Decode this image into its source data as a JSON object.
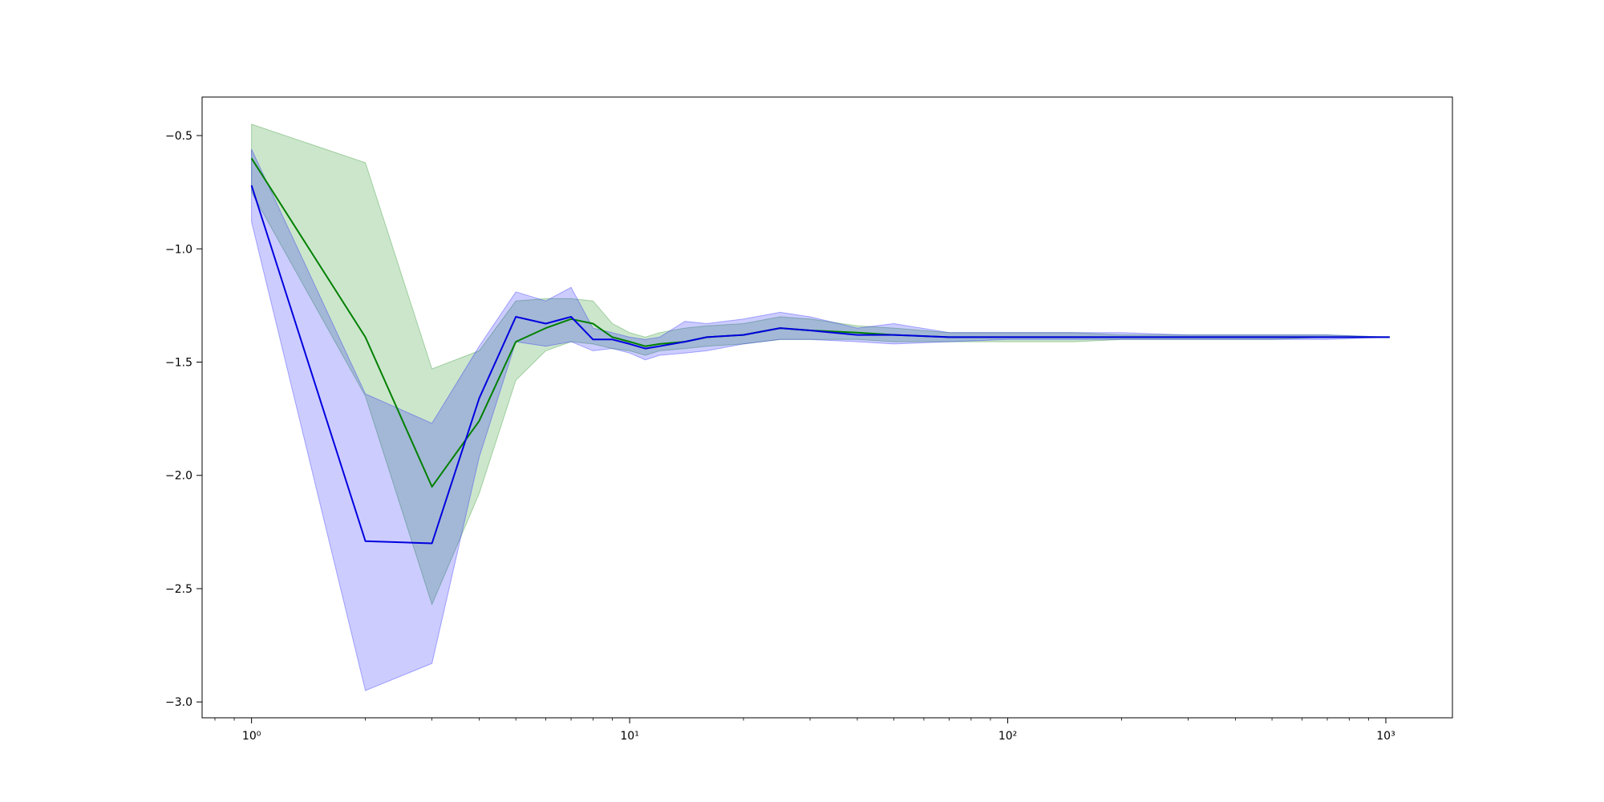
{
  "chart_data": {
    "type": "line",
    "title": "",
    "xlabel": "",
    "ylabel": "",
    "xscale": "log",
    "xlim": [
      0.74,
      1500
    ],
    "ylim": [
      -3.07,
      -0.33
    ],
    "grid": false,
    "legend": "none",
    "x_ticks": [
      {
        "value": 1,
        "label": "10⁰"
      },
      {
        "value": 10,
        "label": "10¹"
      },
      {
        "value": 100,
        "label": "10²"
      },
      {
        "value": 1000,
        "label": "10³"
      }
    ],
    "y_ticks": [
      {
        "value": -0.5,
        "label": "−0.5"
      },
      {
        "value": -1.0,
        "label": "−1.0"
      },
      {
        "value": -1.5,
        "label": "−1.5"
      },
      {
        "value": -2.0,
        "label": "−2.0"
      },
      {
        "value": -2.5,
        "label": "−2.5"
      },
      {
        "value": -3.0,
        "label": "−3.0"
      }
    ],
    "series": [
      {
        "color": "#008000",
        "band_color": "#008000",
        "band_opacity": 0.2,
        "x": [
          1,
          2,
          3,
          4,
          5,
          6,
          7,
          8,
          9,
          10,
          11,
          12,
          14,
          16,
          20,
          25,
          30,
          40,
          50,
          70,
          100,
          150,
          200,
          300,
          500,
          700,
          1024
        ],
        "y": [
          -0.6,
          -1.39,
          -2.05,
          -1.76,
          -1.41,
          -1.35,
          -1.31,
          -1.33,
          -1.39,
          -1.41,
          -1.43,
          -1.42,
          -1.41,
          -1.39,
          -1.38,
          -1.35,
          -1.36,
          -1.37,
          -1.38,
          -1.39,
          -1.39,
          -1.39,
          -1.39,
          -1.39,
          -1.39,
          -1.39,
          -1.39
        ],
        "lower": [
          -0.75,
          -1.65,
          -2.57,
          -2.08,
          -1.58,
          -1.45,
          -1.41,
          -1.42,
          -1.44,
          -1.45,
          -1.47,
          -1.45,
          -1.44,
          -1.43,
          -1.42,
          -1.4,
          -1.4,
          -1.4,
          -1.41,
          -1.41,
          -1.41,
          -1.41,
          -1.4,
          -1.4,
          -1.4,
          -1.39,
          -1.39
        ],
        "upper": [
          -0.45,
          -0.62,
          -1.53,
          -1.45,
          -1.23,
          -1.22,
          -1.22,
          -1.23,
          -1.33,
          -1.37,
          -1.39,
          -1.37,
          -1.35,
          -1.34,
          -1.33,
          -1.3,
          -1.31,
          -1.34,
          -1.35,
          -1.37,
          -1.37,
          -1.37,
          -1.38,
          -1.38,
          -1.38,
          -1.38,
          -1.39
        ]
      },
      {
        "color": "#0000e0",
        "band_color": "#0000ff",
        "band_opacity": 0.2,
        "x": [
          1,
          2,
          3,
          4,
          5,
          6,
          7,
          8,
          9,
          10,
          11,
          12,
          14,
          16,
          20,
          25,
          30,
          40,
          50,
          70,
          100,
          150,
          200,
          300,
          500,
          700,
          1024
        ],
        "y": [
          -0.72,
          -2.29,
          -2.3,
          -1.66,
          -1.3,
          -1.33,
          -1.3,
          -1.4,
          -1.4,
          -1.42,
          -1.44,
          -1.43,
          -1.41,
          -1.39,
          -1.38,
          -1.35,
          -1.36,
          -1.38,
          -1.38,
          -1.39,
          -1.39,
          -1.39,
          -1.39,
          -1.39,
          -1.39,
          -1.39,
          -1.39
        ],
        "lower": [
          -0.88,
          -2.95,
          -2.83,
          -1.92,
          -1.41,
          -1.43,
          -1.41,
          -1.45,
          -1.44,
          -1.46,
          -1.49,
          -1.47,
          -1.46,
          -1.45,
          -1.42,
          -1.4,
          -1.4,
          -1.41,
          -1.42,
          -1.41,
          -1.4,
          -1.4,
          -1.4,
          -1.4,
          -1.4,
          -1.4,
          -1.39
        ],
        "upper": [
          -0.56,
          -1.64,
          -1.77,
          -1.43,
          -1.19,
          -1.23,
          -1.17,
          -1.35,
          -1.37,
          -1.39,
          -1.4,
          -1.39,
          -1.32,
          -1.33,
          -1.31,
          -1.28,
          -1.3,
          -1.35,
          -1.33,
          -1.37,
          -1.37,
          -1.37,
          -1.37,
          -1.38,
          -1.38,
          -1.38,
          -1.39
        ]
      }
    ]
  }
}
